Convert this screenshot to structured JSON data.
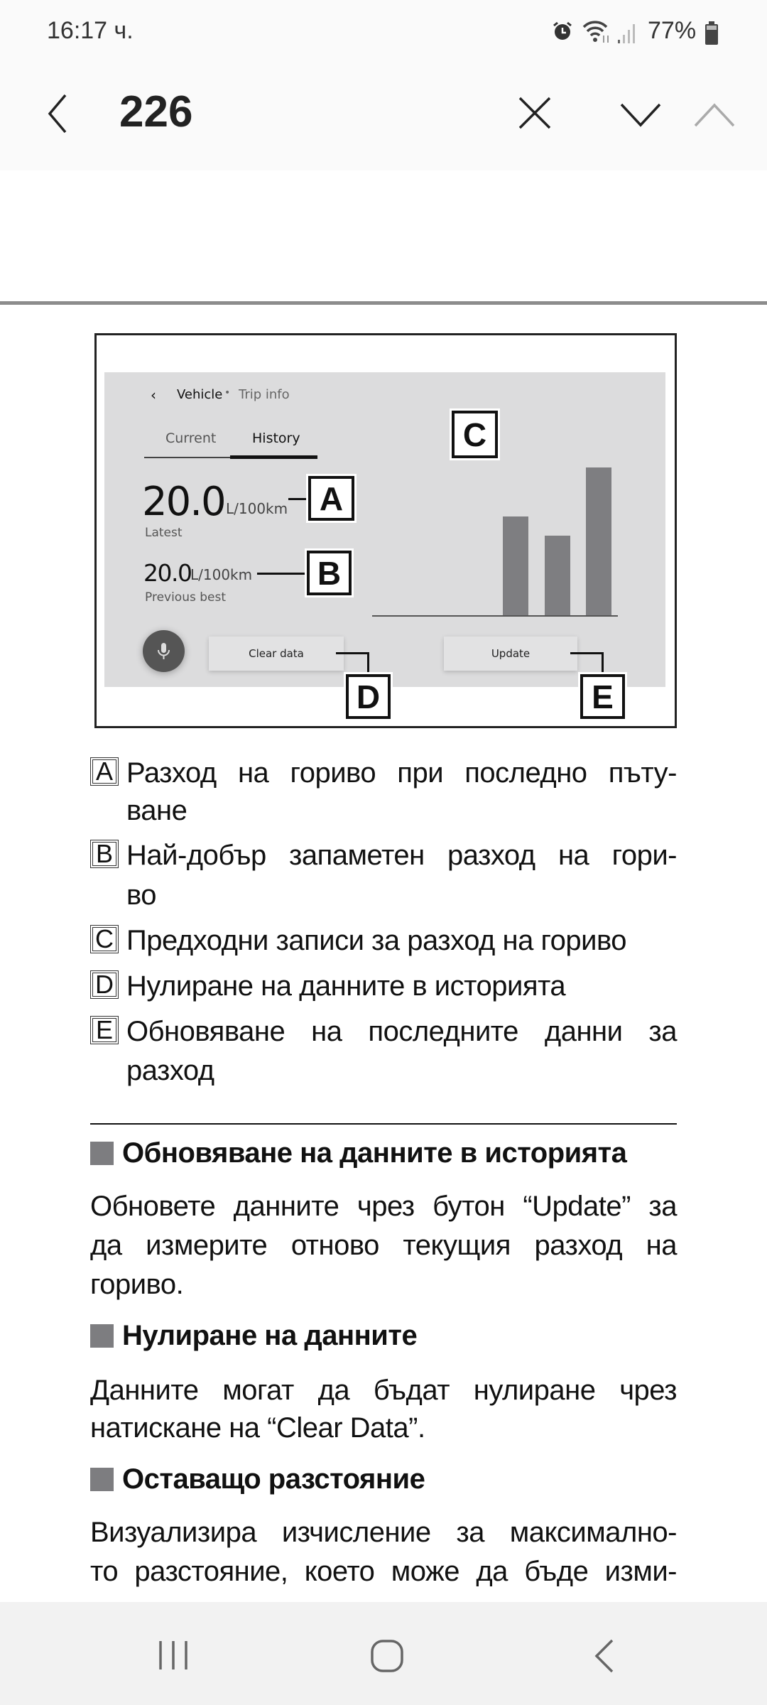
{
  "status_bar": {
    "time": "16:17 ч.",
    "battery": "77%",
    "icons": [
      "alarm-icon",
      "wifi-icon",
      "signal-icon",
      "battery-icon"
    ]
  },
  "toolbar": {
    "page_number": "226",
    "icons": [
      "back-icon",
      "close-icon",
      "next-result-icon",
      "previous-result-icon"
    ]
  },
  "figure": {
    "breadcrumb_parent": "Vehicle",
    "breadcrumb_sep": "•",
    "breadcrumb_current": "Trip info",
    "tabs": [
      {
        "label": "Current",
        "active": false
      },
      {
        "label": "History",
        "active": true
      }
    ],
    "latest_value": "20.0",
    "latest_unit": "L/100km",
    "latest_label": "Latest",
    "best_value": "20.0",
    "best_unit": "L/100km",
    "best_label": "Previous best",
    "clear_button": "Clear data",
    "update_button": "Update",
    "history_bars_relative": [
      0.67,
      0.54,
      1.0
    ],
    "bar_color": "#7e7e81",
    "callouts": {
      "a": "A",
      "b": "B",
      "c": "C",
      "d": "D",
      "e": "E"
    }
  },
  "legend": [
    {
      "key": "A",
      "lines": [
        "Разход на гориво при последно пъту-",
        "ване"
      ]
    },
    {
      "key": "B",
      "lines": [
        "Най-добър запаметен разход на гори-",
        "во"
      ]
    },
    {
      "key": "C",
      "lines": [
        "Предходни записи за разход на гориво"
      ]
    },
    {
      "key": "D",
      "lines": [
        "Нулиране на данните в историята"
      ]
    },
    {
      "key": "E",
      "lines": [
        "Обновяване на последните данни за",
        "разход"
      ]
    }
  ],
  "sections": [
    {
      "heading": "Обновяване на данните в историята",
      "lines": [
        "Обновете данните чрез бутон “Update” за",
        "да измерите отново текущия разход на",
        "гориво."
      ]
    },
    {
      "heading": "Нулиране на данните",
      "lines": [
        "Данните могат да бъдат нулиране чрез",
        "натискане на “Clear Data”."
      ]
    },
    {
      "heading": "Оставащо разстояние",
      "lines": [
        "Визуализира изчисление за максимално-",
        "то разстояние, което може да бъде изми-"
      ]
    }
  ],
  "nav_bar": {
    "icons": [
      "recent-apps-icon",
      "home-icon",
      "back-icon"
    ]
  }
}
